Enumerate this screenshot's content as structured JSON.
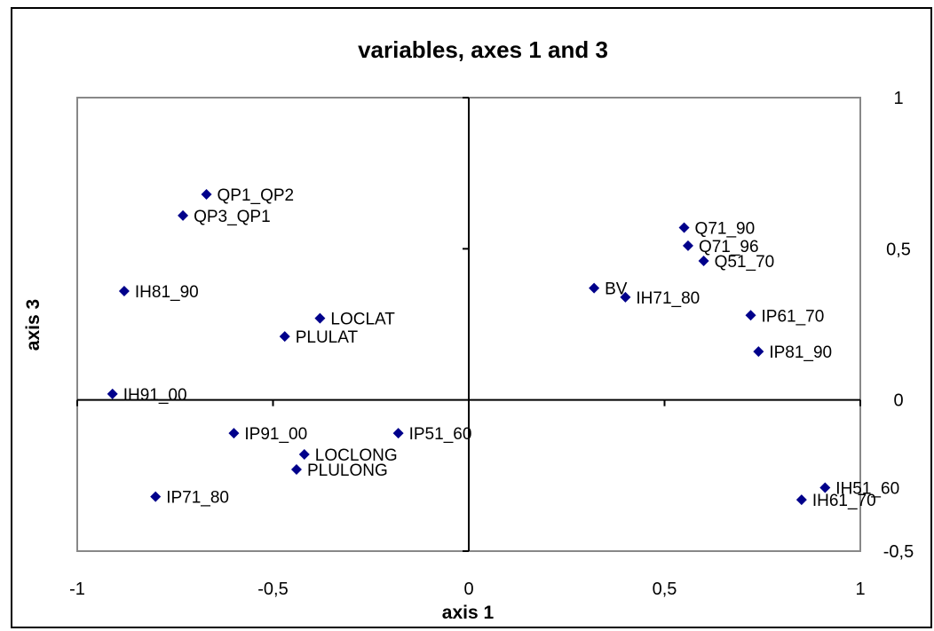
{
  "chart_data": {
    "type": "scatter",
    "title": "variables, axes 1 and 3",
    "xlabel": "axis 1",
    "ylabel": "axis 3",
    "xlim": [
      -1,
      1
    ],
    "ylim": [
      -0.5,
      1
    ],
    "x_ticks": [
      "-1",
      "-0,5",
      "0",
      "0,5",
      "1"
    ],
    "y_ticks": [
      "1",
      "0,5",
      "0",
      "-0,5"
    ],
    "grid": false,
    "marker_color": "#00008b",
    "points": [
      {
        "label": "QP1_QP2",
        "x": -0.67,
        "y": 0.68
      },
      {
        "label": "QP3_QP1",
        "x": -0.73,
        "y": 0.61
      },
      {
        "label": "IH81_90",
        "x": -0.88,
        "y": 0.36
      },
      {
        "label": "LOCLAT",
        "x": -0.38,
        "y": 0.27
      },
      {
        "label": "PLULAT",
        "x": -0.47,
        "y": 0.21
      },
      {
        "label": "IH91_00",
        "x": -0.91,
        "y": 0.02
      },
      {
        "label": "IP91_00",
        "x": -0.6,
        "y": -0.11
      },
      {
        "label": "IP51_60",
        "x": -0.18,
        "y": -0.11
      },
      {
        "label": "LOCLONG",
        "x": -0.42,
        "y": -0.18
      },
      {
        "label": "PLULONG",
        "x": -0.44,
        "y": -0.23
      },
      {
        "label": "IP71_80",
        "x": -0.8,
        "y": -0.32
      },
      {
        "label": "Q71_90",
        "x": 0.55,
        "y": 0.57
      },
      {
        "label": "Q71_96",
        "x": 0.56,
        "y": 0.51
      },
      {
        "label": "Q51_70",
        "x": 0.6,
        "y": 0.46
      },
      {
        "label": "BV",
        "x": 0.32,
        "y": 0.37
      },
      {
        "label": "IH71_80",
        "x": 0.4,
        "y": 0.34
      },
      {
        "label": "IP61_70",
        "x": 0.72,
        "y": 0.28
      },
      {
        "label": "IP81_90",
        "x": 0.74,
        "y": 0.16
      },
      {
        "label": "IH51_60",
        "x": 0.91,
        "y": -0.29
      },
      {
        "label": "IH61_70",
        "x": 0.85,
        "y": -0.33
      }
    ]
  }
}
